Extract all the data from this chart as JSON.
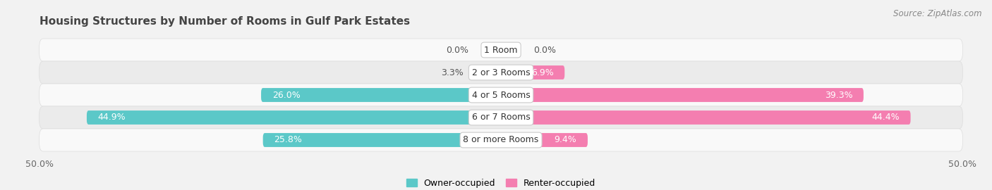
{
  "title": "Housing Structures by Number of Rooms in Gulf Park Estates",
  "source": "Source: ZipAtlas.com",
  "categories": [
    "1 Room",
    "2 or 3 Rooms",
    "4 or 5 Rooms",
    "6 or 7 Rooms",
    "8 or more Rooms"
  ],
  "owner_values": [
    0.0,
    3.3,
    26.0,
    44.9,
    25.8
  ],
  "renter_values": [
    0.0,
    6.9,
    39.3,
    44.4,
    9.4
  ],
  "owner_color": "#5BC8C8",
  "renter_color": "#F47EB0",
  "owner_color_light": "#A8E0E0",
  "renter_color_light": "#F9B8D4",
  "bg_color": "#f2f2f2",
  "row_bg_light": "#f9f9f9",
  "row_bg_dark": "#ebebeb",
  "xlim": 50.0,
  "bar_height": 0.62,
  "title_fontsize": 11,
  "tick_fontsize": 9,
  "label_fontsize": 9,
  "pct_fontsize": 9
}
